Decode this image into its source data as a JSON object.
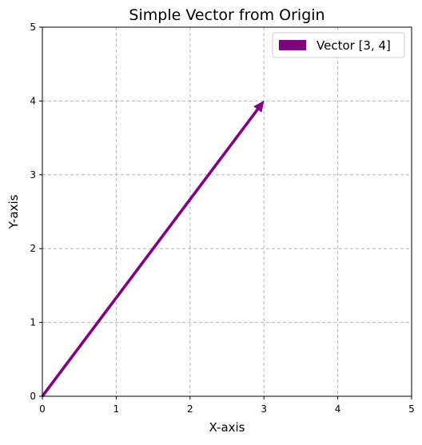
{
  "chart_data": {
    "type": "quiver",
    "title": "Simple Vector from Origin",
    "xlabel": "X-axis",
    "ylabel": "Y-axis",
    "xlim": [
      0,
      5
    ],
    "ylim": [
      0,
      5
    ],
    "xticks": [
      "0",
      "1",
      "2",
      "3",
      "4",
      "5"
    ],
    "yticks": [
      "0",
      "1",
      "2",
      "3",
      "4",
      "5"
    ],
    "grid": true,
    "legend_position": "top-right",
    "series": [
      {
        "name": "Vector [3, 4]",
        "origin": [
          0,
          0
        ],
        "vector": [
          3,
          4
        ],
        "color": "#800080"
      }
    ]
  }
}
